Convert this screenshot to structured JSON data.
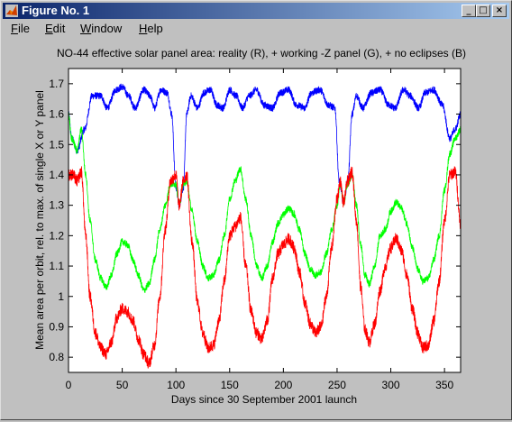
{
  "window": {
    "title": "Figure No. 1",
    "buttons": {
      "minimize": "_",
      "maximize": "□",
      "close": "×"
    }
  },
  "menu": [
    {
      "key": "F",
      "rest": "ile"
    },
    {
      "key": "E",
      "rest": "dit"
    },
    {
      "key": "W",
      "rest": "indow"
    },
    {
      "key": "H",
      "rest": "elp"
    }
  ],
  "colors": {
    "red": "#ff0000",
    "green": "#00ff00",
    "blue": "#0000ff",
    "titlebar": "#0a246a",
    "axes_bg": "#ffffff",
    "figure_bg": "#c0c0c0"
  },
  "chart_data": {
    "type": "line",
    "title": "NO-44 effective solar panel area: reality (R), + working -Z panel (G), + no eclipses (B)",
    "xlabel": "Days since 30 September 2001 launch",
    "ylabel": "Mean area per orbit, rel. to max. of single X or Y panel",
    "xlim": [
      0,
      365
    ],
    "ylim": [
      0.75,
      1.75
    ],
    "xticks": [
      0,
      50,
      100,
      150,
      200,
      250,
      300,
      350
    ],
    "yticks": [
      0.8,
      0.9,
      1,
      1.1,
      1.2,
      1.3,
      1.4,
      1.5,
      1.6,
      1.7
    ],
    "ytick_labels": [
      "0.8",
      "0.9",
      "1",
      "1.1",
      "1.2",
      "1.3",
      "1.4",
      "1.5",
      "1.6",
      "1.7"
    ],
    "grid": false,
    "series": [
      {
        "color": "blue",
        "noise": 0.012,
        "x": [
          0,
          3,
          8,
          15,
          22,
          30,
          36,
          44,
          50,
          56,
          62,
          70,
          76,
          80,
          86,
          92,
          96,
          100,
          103,
          107,
          110,
          114,
          120,
          126,
          132,
          138,
          144,
          150,
          156,
          162,
          168,
          175,
          182,
          190,
          197,
          205,
          212,
          220,
          226,
          234,
          242,
          248,
          252,
          256,
          260,
          264,
          268,
          274,
          282,
          290,
          298,
          304,
          312,
          318,
          326,
          332,
          340,
          348,
          355,
          360,
          365
        ],
        "y": [
          1.6,
          1.52,
          1.48,
          1.55,
          1.66,
          1.66,
          1.62,
          1.68,
          1.69,
          1.66,
          1.62,
          1.68,
          1.66,
          1.62,
          1.68,
          1.67,
          1.6,
          1.36,
          1.3,
          1.36,
          1.6,
          1.66,
          1.62,
          1.67,
          1.68,
          1.63,
          1.62,
          1.68,
          1.66,
          1.62,
          1.66,
          1.68,
          1.63,
          1.62,
          1.67,
          1.68,
          1.63,
          1.62,
          1.67,
          1.68,
          1.63,
          1.62,
          1.38,
          1.31,
          1.38,
          1.6,
          1.66,
          1.62,
          1.67,
          1.68,
          1.63,
          1.62,
          1.68,
          1.66,
          1.62,
          1.67,
          1.68,
          1.63,
          1.52,
          1.55,
          1.6
        ]
      },
      {
        "color": "green",
        "noise": 0.012,
        "x": [
          0,
          3,
          8,
          12,
          16,
          20,
          25,
          30,
          35,
          40,
          45,
          50,
          55,
          60,
          65,
          70,
          75,
          80,
          85,
          90,
          95,
          100,
          103,
          107,
          110,
          115,
          120,
          125,
          130,
          135,
          140,
          145,
          150,
          155,
          160,
          165,
          170,
          175,
          180,
          185,
          190,
          195,
          200,
          205,
          210,
          215,
          220,
          225,
          230,
          235,
          240,
          245,
          250,
          253,
          256,
          260,
          264,
          268,
          272,
          276,
          280,
          285,
          290,
          295,
          300,
          305,
          310,
          315,
          320,
          325,
          330,
          335,
          340,
          345,
          350,
          355,
          360,
          365
        ],
        "y": [
          1.6,
          1.52,
          1.48,
          1.55,
          1.4,
          1.25,
          1.12,
          1.06,
          1.03,
          1.07,
          1.14,
          1.18,
          1.17,
          1.12,
          1.07,
          1.02,
          1.04,
          1.12,
          1.22,
          1.3,
          1.37,
          1.37,
          1.3,
          1.37,
          1.38,
          1.28,
          1.18,
          1.1,
          1.06,
          1.07,
          1.12,
          1.2,
          1.32,
          1.38,
          1.42,
          1.32,
          1.2,
          1.1,
          1.06,
          1.1,
          1.18,
          1.24,
          1.27,
          1.29,
          1.27,
          1.22,
          1.14,
          1.09,
          1.07,
          1.08,
          1.14,
          1.22,
          1.3,
          1.37,
          1.31,
          1.37,
          1.4,
          1.3,
          1.17,
          1.07,
          1.04,
          1.1,
          1.2,
          1.22,
          1.28,
          1.31,
          1.29,
          1.24,
          1.16,
          1.09,
          1.05,
          1.06,
          1.12,
          1.2,
          1.35,
          1.47,
          1.52,
          1.55
        ]
      },
      {
        "color": "red",
        "noise": 0.02,
        "x": [
          0,
          4,
          8,
          12,
          16,
          20,
          25,
          30,
          35,
          40,
          45,
          50,
          55,
          60,
          65,
          70,
          75,
          80,
          85,
          90,
          95,
          100,
          103,
          107,
          110,
          115,
          120,
          125,
          130,
          135,
          140,
          145,
          150,
          155,
          160,
          165,
          170,
          175,
          180,
          185,
          190,
          195,
          200,
          205,
          210,
          215,
          220,
          225,
          230,
          235,
          240,
          245,
          250,
          253,
          256,
          260,
          264,
          268,
          272,
          276,
          280,
          285,
          290,
          295,
          300,
          305,
          310,
          315,
          320,
          325,
          330,
          335,
          340,
          345,
          350,
          355,
          360,
          365
        ],
        "y": [
          1.4,
          1.4,
          1.38,
          1.41,
          1.2,
          1.0,
          0.88,
          0.83,
          0.81,
          0.85,
          0.93,
          0.96,
          0.95,
          0.92,
          0.86,
          0.81,
          0.78,
          0.84,
          1.0,
          1.22,
          1.38,
          1.4,
          1.3,
          1.38,
          1.4,
          1.18,
          0.98,
          0.88,
          0.83,
          0.84,
          0.92,
          1.05,
          1.2,
          1.23,
          1.26,
          1.1,
          0.95,
          0.88,
          0.86,
          0.92,
          1.06,
          1.14,
          1.17,
          1.19,
          1.16,
          1.08,
          0.98,
          0.91,
          0.88,
          0.9,
          1.0,
          1.16,
          1.32,
          1.38,
          1.31,
          1.38,
          1.41,
          1.25,
          1.03,
          0.89,
          0.85,
          0.91,
          1.02,
          1.1,
          1.16,
          1.19,
          1.15,
          1.07,
          0.96,
          0.88,
          0.83,
          0.84,
          0.92,
          1.05,
          1.25,
          1.4,
          1.41,
          1.24
        ]
      }
    ]
  }
}
